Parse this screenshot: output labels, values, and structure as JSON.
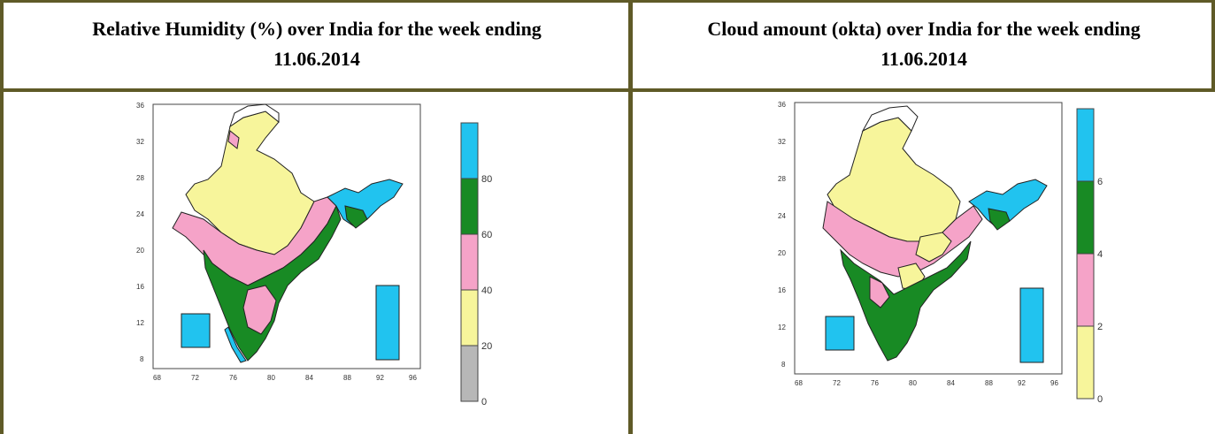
{
  "panels": [
    {
      "title_line1": "Relative Humidity (%) over India for the week ending",
      "title_line2": "11.06.2014",
      "x_ticks": [
        "68",
        "72",
        "76",
        "80",
        "84",
        "88",
        "92",
        "96"
      ],
      "y_ticks": [
        "36",
        "32",
        "28",
        "24",
        "20",
        "16",
        "12",
        "8"
      ],
      "colorbar": {
        "colors": [
          "#21c3ef",
          "#188a24",
          "#f5a3c8",
          "#f7f59b",
          "#b7b7b7"
        ],
        "labels": [
          "80",
          "60",
          "40",
          "20",
          "0"
        ]
      }
    },
    {
      "title_line1": "Cloud amount (okta) over India for the week ending",
      "title_line2": "11.06.2014",
      "x_ticks": [
        "68",
        "72",
        "76",
        "80",
        "84",
        "88",
        "92",
        "96"
      ],
      "y_ticks": [
        "36",
        "32",
        "28",
        "24",
        "20",
        "16",
        "12",
        "8"
      ],
      "colorbar": {
        "colors": [
          "#21c3ef",
          "#188a24",
          "#f5a3c8",
          "#f7f59b"
        ],
        "labels": [
          "6",
          "4",
          "2",
          "0"
        ]
      }
    }
  ]
}
